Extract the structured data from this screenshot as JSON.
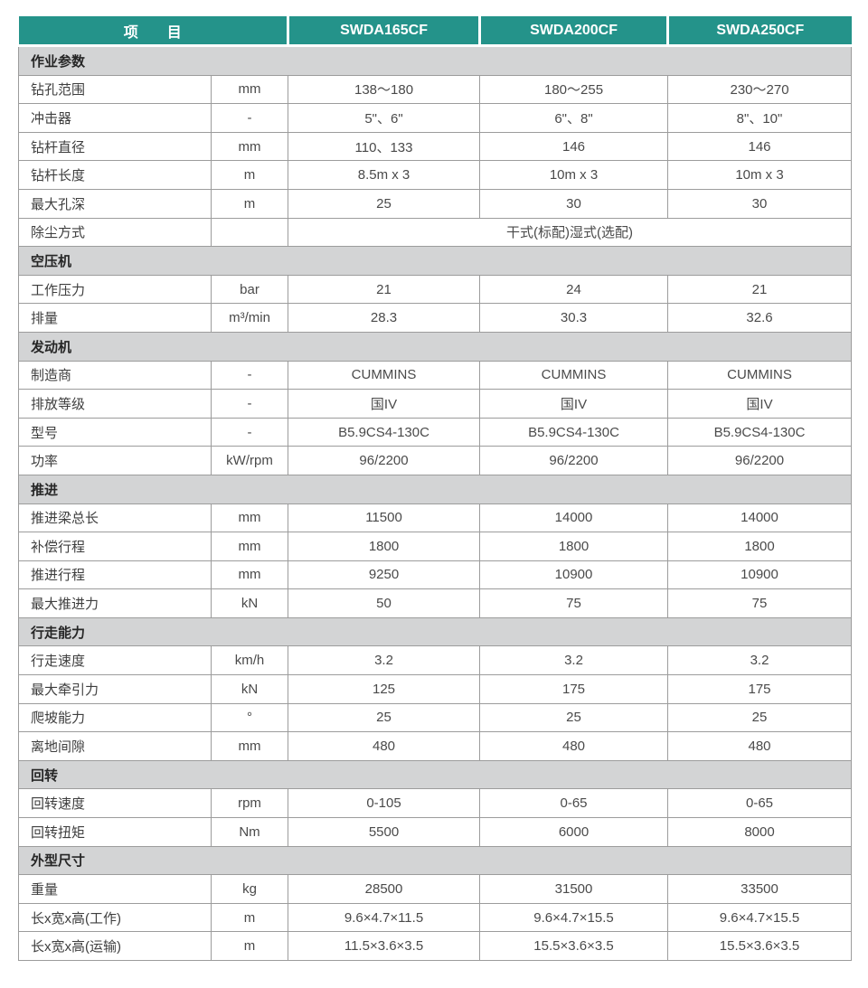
{
  "header": {
    "item_label": "项　　目",
    "models": [
      "SWDA165CF",
      "SWDA200CF",
      "SWDA250CF"
    ]
  },
  "colors": {
    "header_bg": "#24938a",
    "header_text": "#ffffff",
    "section_bg": "#d3d4d5",
    "border": "#9c9c9c",
    "value_text": "#4a4a4a"
  },
  "sections": [
    {
      "title": "作业参数",
      "rows": [
        {
          "label": "钻孔范围",
          "unit": "mm",
          "values": [
            "138～180",
            "180～255",
            "230～270"
          ]
        },
        {
          "label": "冲击器",
          "unit": "-",
          "values": [
            "5\"、6\"",
            "6\"、8\"",
            "8\"、10\""
          ]
        },
        {
          "label": "钻杆直径",
          "unit": "mm",
          "values": [
            "110、133",
            "146",
            "146"
          ]
        },
        {
          "label": "钻杆长度",
          "unit": "m",
          "values": [
            "8.5m x 3",
            "10m x 3",
            "10m x 3"
          ]
        },
        {
          "label": "最大孔深",
          "unit": "m",
          "values": [
            "25",
            "30",
            "30"
          ]
        },
        {
          "label": "除尘方式",
          "unit": "",
          "merged": "干式(标配)湿式(选配)"
        }
      ]
    },
    {
      "title": "空压机",
      "rows": [
        {
          "label": "工作压力",
          "unit": "bar",
          "values": [
            "21",
            "24",
            "21"
          ]
        },
        {
          "label": "排量",
          "unit": "m³/min",
          "values": [
            "28.3",
            "30.3",
            "32.6"
          ]
        }
      ]
    },
    {
      "title": "发动机",
      "rows": [
        {
          "label": "制造商",
          "unit": "-",
          "values": [
            "CUMMINS",
            "CUMMINS",
            "CUMMINS"
          ]
        },
        {
          "label": "排放等级",
          "unit": "-",
          "values": [
            "国IV",
            "国IV",
            "国IV"
          ]
        },
        {
          "label": "型号",
          "unit": "-",
          "values": [
            "B5.9CS4-130C",
            "B5.9CS4-130C",
            "B5.9CS4-130C"
          ]
        },
        {
          "label": "功率",
          "unit": "kW/rpm",
          "values": [
            "96/2200",
            "96/2200",
            "96/2200"
          ]
        }
      ]
    },
    {
      "title": "推进",
      "rows": [
        {
          "label": "推进梁总长",
          "unit": "mm",
          "values": [
            "11500",
            "14000",
            "14000"
          ]
        },
        {
          "label": "补偿行程",
          "unit": "mm",
          "values": [
            "1800",
            "1800",
            "1800"
          ]
        },
        {
          "label": "推进行程",
          "unit": "mm",
          "values": [
            "9250",
            "10900",
            "10900"
          ]
        },
        {
          "label": "最大推进力",
          "unit": "kN",
          "values": [
            "50",
            "75",
            "75"
          ]
        }
      ]
    },
    {
      "title": "行走能力",
      "rows": [
        {
          "label": "行走速度",
          "unit": "km/h",
          "values": [
            "3.2",
            "3.2",
            "3.2"
          ]
        },
        {
          "label": "最大牵引力",
          "unit": "kN",
          "values": [
            "125",
            "175",
            "175"
          ]
        },
        {
          "label": "爬坡能力",
          "unit": "°",
          "values": [
            "25",
            "25",
            "25"
          ]
        },
        {
          "label": "离地间隙",
          "unit": "mm",
          "values": [
            "480",
            "480",
            "480"
          ]
        }
      ]
    },
    {
      "title": "回转",
      "rows": [
        {
          "label": "回转速度",
          "unit": "rpm",
          "values": [
            "0-105",
            "0-65",
            "0-65"
          ]
        },
        {
          "label": "回转扭矩",
          "unit": "Nm",
          "values": [
            "5500",
            "6000",
            "8000"
          ]
        }
      ]
    },
    {
      "title": "外型尺寸",
      "rows": [
        {
          "label": "重量",
          "unit": "kg",
          "values": [
            "28500",
            "31500",
            "33500"
          ]
        },
        {
          "label": "长x宽x高(工作)",
          "unit": "m",
          "values": [
            "9.6×4.7×11.5",
            "9.6×4.7×15.5",
            "9.6×4.7×15.5"
          ]
        },
        {
          "label": "长x宽x高(运输)",
          "unit": "m",
          "values": [
            "11.5×3.6×3.5",
            "15.5×3.6×3.5",
            "15.5×3.6×3.5"
          ]
        }
      ]
    }
  ]
}
